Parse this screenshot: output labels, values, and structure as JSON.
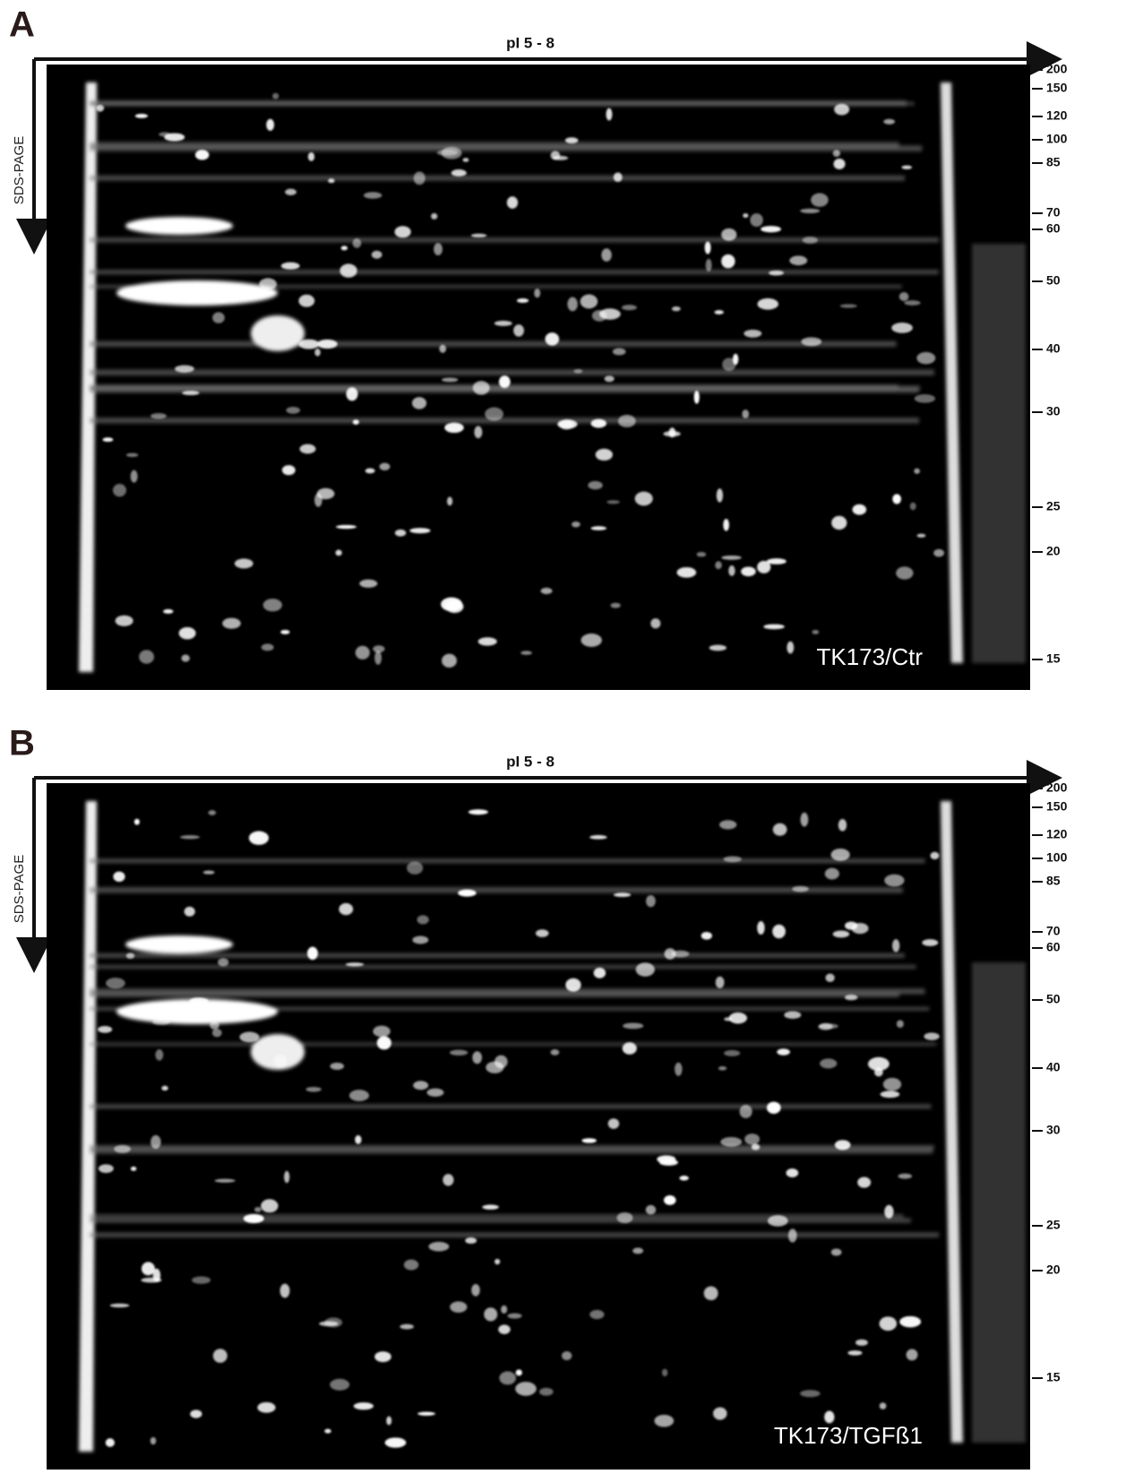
{
  "panels": [
    {
      "label": "A",
      "x_axis_label": "pI 5 - 8",
      "y_axis_label": "SDS-PAGE",
      "mw_markers": [
        200,
        150,
        120,
        100,
        85,
        70,
        60,
        50,
        40,
        30,
        25,
        20,
        15
      ],
      "sample_label": "TK173/Ctr"
    },
    {
      "label": "B",
      "x_axis_label": "pI 5 - 8",
      "y_axis_label": "SDS-PAGE",
      "mw_markers": [
        200,
        150,
        120,
        100,
        85,
        70,
        60,
        50,
        40,
        30,
        25,
        20,
        15
      ],
      "sample_label": "TK173/TGFß1"
    }
  ]
}
